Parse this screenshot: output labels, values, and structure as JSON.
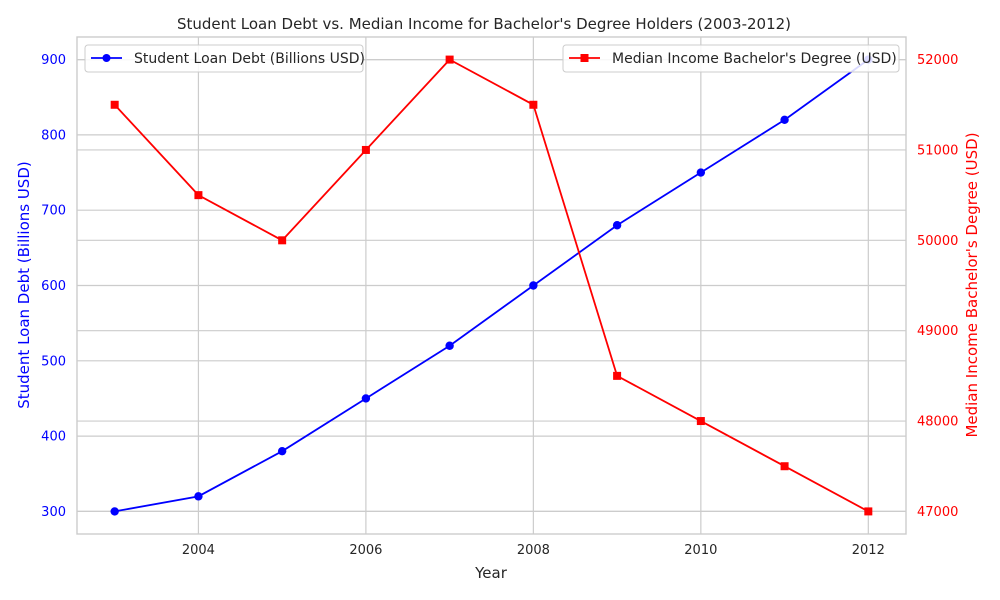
{
  "chart_data": {
    "type": "line",
    "title": "Student Loan Debt vs. Median Income for Bachelor's Degree Holders (2003-2012)",
    "xlabel": "Year",
    "x": [
      2003,
      2004,
      2005,
      2006,
      2007,
      2008,
      2009,
      2010,
      2011,
      2012
    ],
    "xlim": [
      2002.55,
      2012.45
    ],
    "xticks": [
      2004,
      2006,
      2008,
      2010,
      2012
    ],
    "grid": true,
    "axes": {
      "left": {
        "label": "Student Loan Debt (Billions USD)",
        "color": "#0000ff",
        "ylim": [
          270,
          930
        ],
        "ticks": [
          300,
          400,
          500,
          600,
          700,
          800,
          900
        ]
      },
      "right": {
        "label": "Median Income Bachelor's Degree (USD)",
        "color": "#ff0000",
        "ylim": [
          46750,
          52250
        ],
        "ticks": [
          47000,
          48000,
          49000,
          50000,
          51000,
          52000
        ]
      }
    },
    "series": [
      {
        "name": "Student Loan Debt (Billions USD)",
        "axis": "left",
        "color": "#0000ff",
        "marker": "circle",
        "legend": "top-left",
        "values": [
          300,
          320,
          380,
          450,
          520,
          600,
          680,
          750,
          820,
          900
        ]
      },
      {
        "name": "Median Income Bachelor's Degree (USD)",
        "axis": "right",
        "color": "#ff0000",
        "marker": "square",
        "legend": "top-right",
        "values": [
          51500,
          50500,
          50000,
          51000,
          52000,
          51500,
          48500,
          48000,
          47500,
          47000
        ]
      }
    ]
  }
}
